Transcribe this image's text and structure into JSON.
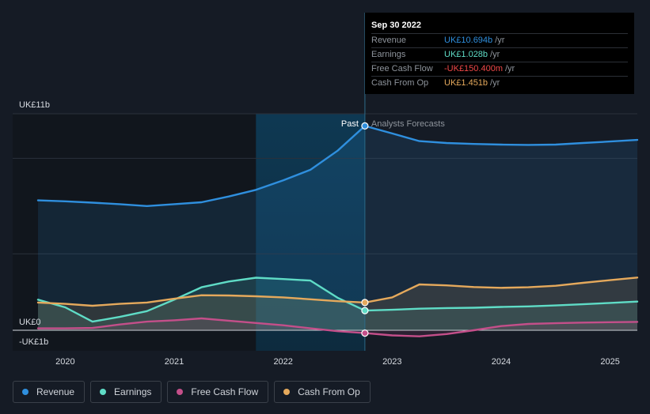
{
  "tooltip": {
    "date": "Sep 30 2022",
    "rows": [
      {
        "label": "Revenue",
        "value": "UK£10.694b",
        "unit": "/yr",
        "color": "#2f8fde"
      },
      {
        "label": "Earnings",
        "value": "UK£1.028b",
        "unit": "/yr",
        "color": "#5fdcc6"
      },
      {
        "label": "Free Cash Flow",
        "value": "-UK£150.400m",
        "unit": "/yr",
        "color": "#f04848"
      },
      {
        "label": "Cash From Op",
        "value": "UK£1.451b",
        "unit": "/yr",
        "color": "#e5a95c"
      }
    ]
  },
  "legend": [
    {
      "label": "Revenue",
      "color": "#2f8fde"
    },
    {
      "label": "Earnings",
      "color": "#5fdcc6"
    },
    {
      "label": "Free Cash Flow",
      "color": "#c44f8a"
    },
    {
      "label": "Cash From Op",
      "color": "#e5a95c"
    }
  ],
  "chart_data": {
    "type": "line",
    "title": "",
    "ylabel": "",
    "xlabel": "",
    "y_tick_labels": [
      {
        "label": "UK£11b",
        "value": 11
      },
      {
        "label": "UK£0",
        "value": 0
      },
      {
        "label": "-UK£1b",
        "value": -1
      }
    ],
    "x_tick_labels": [
      {
        "label": "2020",
        "value": 2020.0
      },
      {
        "label": "2021",
        "value": 2021.0
      },
      {
        "label": "2022",
        "value": 2022.0
      },
      {
        "label": "2023",
        "value": 2023.0
      },
      {
        "label": "2024",
        "value": 2024.0
      },
      {
        "label": "2025",
        "value": 2025.0
      }
    ],
    "xlim": [
      2019.75,
      2025.25
    ],
    "ylim": [
      -1.0,
      11.0
    ],
    "divider_x": 2022.75,
    "highlight_start_x": 2021.75,
    "past_label": "Past",
    "forecast_label": "Analysts Forecasts",
    "series": [
      {
        "name": "Revenue",
        "color": "#2f8fde",
        "points": [
          [
            2019.75,
            6.8
          ],
          [
            2020.0,
            6.75
          ],
          [
            2020.25,
            6.68
          ],
          [
            2020.5,
            6.6
          ],
          [
            2020.75,
            6.5
          ],
          [
            2021.0,
            6.6
          ],
          [
            2021.25,
            6.7
          ],
          [
            2021.5,
            7.0
          ],
          [
            2021.75,
            7.35
          ],
          [
            2022.0,
            7.85
          ],
          [
            2022.25,
            8.4
          ],
          [
            2022.5,
            9.4
          ],
          [
            2022.75,
            10.694
          ],
          [
            2023.0,
            10.3
          ],
          [
            2023.25,
            9.9
          ],
          [
            2023.5,
            9.8
          ],
          [
            2023.75,
            9.75
          ],
          [
            2024.0,
            9.72
          ],
          [
            2024.25,
            9.7
          ],
          [
            2024.5,
            9.72
          ],
          [
            2024.75,
            9.8
          ],
          [
            2025.0,
            9.88
          ],
          [
            2025.25,
            9.96
          ]
        ]
      },
      {
        "name": "Earnings",
        "color": "#5fdcc6",
        "points": [
          [
            2019.75,
            1.6
          ],
          [
            2020.0,
            1.2
          ],
          [
            2020.25,
            0.45
          ],
          [
            2020.5,
            0.7
          ],
          [
            2020.75,
            1.0
          ],
          [
            2021.0,
            1.6
          ],
          [
            2021.25,
            2.25
          ],
          [
            2021.5,
            2.55
          ],
          [
            2021.75,
            2.75
          ],
          [
            2022.0,
            2.68
          ],
          [
            2022.25,
            2.6
          ],
          [
            2022.5,
            1.7
          ],
          [
            2022.75,
            1.028
          ],
          [
            2023.0,
            1.07
          ],
          [
            2023.25,
            1.13
          ],
          [
            2023.5,
            1.16
          ],
          [
            2023.75,
            1.18
          ],
          [
            2024.0,
            1.22
          ],
          [
            2024.25,
            1.25
          ],
          [
            2024.5,
            1.3
          ],
          [
            2024.75,
            1.36
          ],
          [
            2025.0,
            1.43
          ],
          [
            2025.25,
            1.5
          ]
        ]
      },
      {
        "name": "Free Cash Flow",
        "color": "#c44f8a",
        "points": [
          [
            2019.75,
            0.1
          ],
          [
            2020.0,
            0.1
          ],
          [
            2020.25,
            0.12
          ],
          [
            2020.5,
            0.3
          ],
          [
            2020.75,
            0.45
          ],
          [
            2021.0,
            0.52
          ],
          [
            2021.25,
            0.62
          ],
          [
            2021.5,
            0.5
          ],
          [
            2021.75,
            0.38
          ],
          [
            2022.0,
            0.26
          ],
          [
            2022.25,
            0.1
          ],
          [
            2022.5,
            -0.05
          ],
          [
            2022.75,
            -0.1504
          ],
          [
            2023.0,
            -0.27
          ],
          [
            2023.25,
            -0.32
          ],
          [
            2023.5,
            -0.2
          ],
          [
            2023.75,
            0.0
          ],
          [
            2024.0,
            0.22
          ],
          [
            2024.25,
            0.33
          ],
          [
            2024.5,
            0.37
          ],
          [
            2024.75,
            0.4
          ],
          [
            2025.0,
            0.42
          ],
          [
            2025.25,
            0.44
          ]
        ]
      },
      {
        "name": "Cash From Op",
        "color": "#e5a95c",
        "points": [
          [
            2019.75,
            1.45
          ],
          [
            2020.0,
            1.38
          ],
          [
            2020.25,
            1.28
          ],
          [
            2020.5,
            1.38
          ],
          [
            2020.75,
            1.45
          ],
          [
            2021.0,
            1.65
          ],
          [
            2021.25,
            1.83
          ],
          [
            2021.5,
            1.82
          ],
          [
            2021.75,
            1.78
          ],
          [
            2022.0,
            1.72
          ],
          [
            2022.25,
            1.62
          ],
          [
            2022.5,
            1.52
          ],
          [
            2022.75,
            1.451
          ],
          [
            2023.0,
            1.72
          ],
          [
            2023.25,
            2.4
          ],
          [
            2023.5,
            2.35
          ],
          [
            2023.75,
            2.26
          ],
          [
            2024.0,
            2.22
          ],
          [
            2024.25,
            2.25
          ],
          [
            2024.5,
            2.33
          ],
          [
            2024.75,
            2.48
          ],
          [
            2025.0,
            2.62
          ],
          [
            2025.25,
            2.76
          ]
        ]
      }
    ],
    "markers": [
      {
        "series": "Revenue",
        "x": 2022.75,
        "y": 10.694
      },
      {
        "series": "Earnings",
        "x": 2022.75,
        "y": 1.028
      },
      {
        "series": "Free Cash Flow",
        "x": 2022.75,
        "y": -0.1504
      },
      {
        "series": "Cash From Op",
        "x": 2022.75,
        "y": 1.451
      }
    ]
  }
}
